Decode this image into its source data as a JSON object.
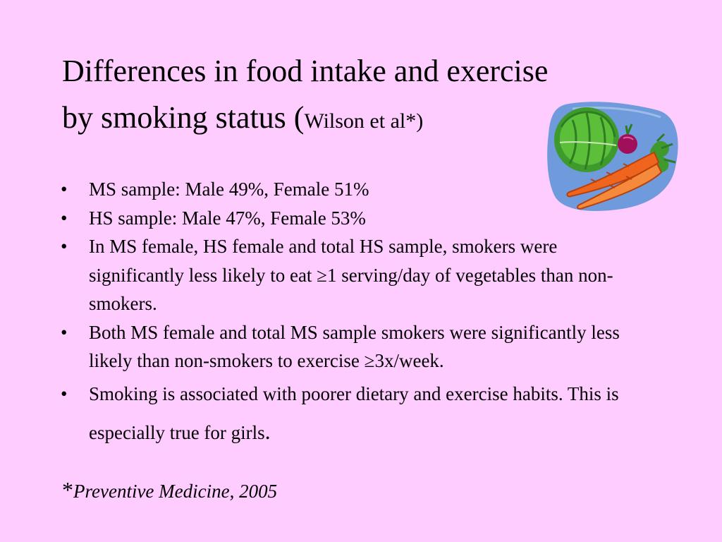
{
  "slide": {
    "title_line1": "Differences in food intake and exercise",
    "title_line2": "by smoking status",
    "title_cite_open": "(",
    "title_cite": "Wilson et al*)",
    "bullet_glyph": "•",
    "bullets": [
      "MS sample: Male  49%, Female  51%",
      "HS sample:  Male  47%, Female  53%",
      "In MS female, HS female and total HS sample, smokers were significantly less likely to eat ≥1 serving/day of vegetables than non-smokers.",
      "Both MS female and total MS sample smokers were significantly less likely than non-smokers to exercise ≥3x/week.",
      "Smoking is associated with poorer dietary and exercise habits.  This is especially true for girls"
    ],
    "last_bullet_period": ".",
    "footnote_star": "*",
    "footnote_source": "Preventive Medicine, 2005",
    "clipart_icon": "vegetables-clipart-icon",
    "colors": {
      "background": "#ffccff",
      "text": "#000000",
      "clipart_plate": "#6f9bdc",
      "cabbage": "#5cbf3a",
      "carrot": "#f0651e",
      "radish": "#a0105a"
    }
  }
}
